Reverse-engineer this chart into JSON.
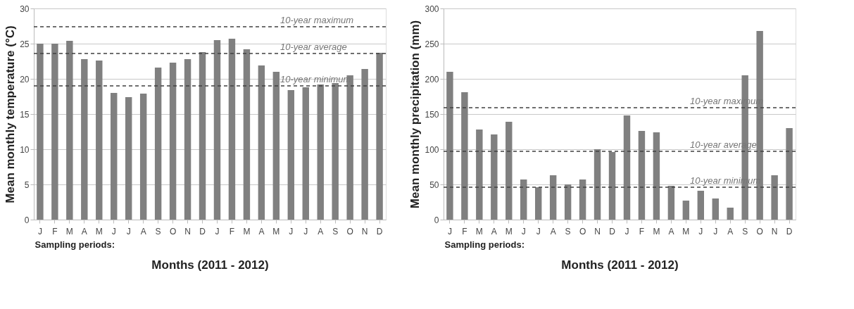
{
  "chart_data": [
    {
      "type": "bar",
      "xlabel": "Months (2011 - 2012)",
      "ylabel": "Mean monthly temperature (°C)",
      "categories": [
        "J",
        "F",
        "M",
        "A",
        "M",
        "J",
        "J",
        "A",
        "S",
        "O",
        "N",
        "D",
        "J",
        "F",
        "M",
        "A",
        "M",
        "J",
        "J",
        "A",
        "S",
        "O",
        "N",
        "D"
      ],
      "values": [
        25,
        25,
        25.4,
        22.8,
        22.6,
        18,
        17.4,
        17.9,
        21.6,
        22.3,
        22.8,
        23.8,
        25.5,
        25.7,
        24.2,
        21.9,
        21,
        18.4,
        18.8,
        19.2,
        19.4,
        20.5,
        21.4,
        23.7
      ],
      "color": "#808080",
      "ylim": [
        0,
        30
      ],
      "yticks": [
        0,
        5,
        10,
        15,
        20,
        25,
        30
      ],
      "grid": "y",
      "ref_lines": [
        {
          "axis": "y",
          "value": 27.4,
          "label": "10-year maximum",
          "color": "#404040",
          "line_style": "dashed"
        },
        {
          "axis": "y",
          "value": 23.6,
          "label": "10-year average",
          "color": "#404040",
          "line_style": "dashed"
        },
        {
          "axis": "y",
          "value": 19.0,
          "label": "10-year minimum",
          "color": "#404040",
          "line_style": "dashed"
        }
      ],
      "annotations": [
        "Sampling periods:"
      ]
    },
    {
      "type": "bar",
      "xlabel": "Months (2011 - 2012)",
      "ylabel": "Mean monthly precipitation (mm)",
      "categories": [
        "J",
        "F",
        "M",
        "A",
        "M",
        "J",
        "J",
        "A",
        "S",
        "O",
        "N",
        "D",
        "J",
        "F",
        "M",
        "A",
        "M",
        "J",
        "J",
        "A",
        "S",
        "O",
        "N",
        "D"
      ],
      "values": [
        210,
        181,
        128,
        121,
        139,
        57,
        46,
        63,
        50,
        57,
        100,
        96,
        148,
        126,
        124,
        48,
        27,
        41,
        30,
        17,
        205,
        268,
        63,
        130
      ],
      "color": "#808080",
      "ylim": [
        0,
        300
      ],
      "yticks": [
        0,
        50,
        100,
        150,
        200,
        250,
        300
      ],
      "grid": "y",
      "ref_lines": [
        {
          "axis": "y",
          "value": 159,
          "label": "10-year maximum",
          "color": "#404040",
          "line_style": "dashed"
        },
        {
          "axis": "y",
          "value": 97,
          "label": "10-year average",
          "color": "#404040",
          "line_style": "dashed"
        },
        {
          "axis": "y",
          "value": 46,
          "label": "10-year minimum",
          "color": "#404040",
          "line_style": "dashed"
        }
      ],
      "annotations": [
        "Sampling periods:"
      ]
    }
  ]
}
